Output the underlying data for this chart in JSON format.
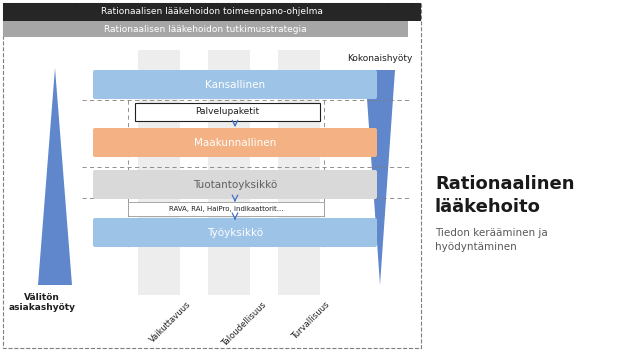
{
  "bg_color": "#ffffff",
  "top_bar1_color": "#262626",
  "top_bar1_text": "Rationaalisen lääkehoidon toimeenpano-ohjelma",
  "top_bar1_text_color": "#ffffff",
  "top_bar2_color": "#a6a6a6",
  "top_bar2_text": "Rationaalisen lääkehoidon tutkimusstrategia",
  "top_bar2_text_color": "#ffffff",
  "box_kansallinen_color": "#9dc3e6",
  "box_kansallinen_text": "Kansallinen",
  "box_palvelupaketit_color": "#ffffff",
  "box_palvelupaketit_text": "Palvelupaketit",
  "box_maakunnallinen_color": "#f4b183",
  "box_maakunnallinen_text": "Maakunnallinen",
  "box_tuotantoyksikko_color": "#d9d9d9",
  "box_tuotantoyksikko_text": "Tuotantoyksikkö",
  "box_rava_text": "RAVA, RAI, HaiPro, indikaattorit...",
  "box_tyoyksikko_color": "#9dc3e6",
  "box_tyoyksikko_text": "Työyksikkö",
  "left_triangle_color": "#4472c4",
  "right_triangle_color": "#4472c4",
  "left_label_line1": "Välitön",
  "left_label_line2": "asiakashyöty",
  "right_label": "Kokonaishyöty",
  "col_labels": [
    "Vaikuttavuus",
    "Taloudellisuus",
    "Turvallisuus"
  ],
  "col_stripe_color": "#d9d9d9",
  "right_title_line1": "Rationaalinen",
  "right_title_line2": "lääkehoito",
  "right_subtitle": "Tiedon kerääminen ja\nhyödyntäminen",
  "outer_border_color": "#7f7f7f",
  "dashed_line_color": "#7f7f7f",
  "arrow_color": "#4472c4"
}
